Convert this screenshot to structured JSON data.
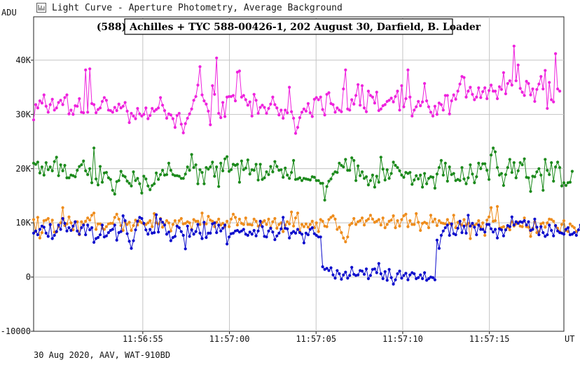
{
  "window": {
    "title": "Light Curve - Aperture Photometry, Average Background",
    "icon": "light-curve-icon"
  },
  "footer": {
    "text": "30 Aug 2020, AAV, WAT-910BD"
  },
  "chart_data": {
    "type": "line",
    "title": "(588) Achilles + TYC 588-00426-1, 202 August 30, Darfield, B. Loader",
    "ylabel": "ADU",
    "xlabel": "UT",
    "ylim": [
      -10000,
      48000
    ],
    "xlim": [
      "11:56:48.7",
      "11:57:19.3"
    ],
    "grid": true,
    "y_ticks": [
      {
        "value": -10000,
        "label": "-10000"
      },
      {
        "value": 0,
        "label": "0"
      },
      {
        "value": 10000,
        "label": "10K"
      },
      {
        "value": 20000,
        "label": "20K"
      },
      {
        "value": 30000,
        "label": "30K"
      },
      {
        "value": 40000,
        "label": "40K"
      }
    ],
    "x_ticks": [
      {
        "value": "11:56:55",
        "label": "11:56:55"
      },
      {
        "value": "11:57:00",
        "label": "11:57:00"
      },
      {
        "value": "11:57:05",
        "label": "11:57:05"
      },
      {
        "value": "11:57:10",
        "label": "11:57:10"
      },
      {
        "value": "11:57:15",
        "label": "11:57:15"
      }
    ],
    "x": {
      "start": "11:56:48.7",
      "step_seconds": 0.12,
      "count": 256
    },
    "series": [
      {
        "color": "#ee22dd",
        "values": [
          29000,
          31800,
          31200,
          32500,
          32100,
          33600,
          31500,
          30400,
          31800,
          32800,
          30800,
          31200,
          32200,
          32600,
          31800,
          33100,
          33600,
          30100,
          30800,
          30000,
          31600,
          31500,
          32900,
          30400,
          30300,
          38200,
          30400,
          38400,
          32000,
          31800,
          30300,
          30900,
          31200,
          32400,
          33100,
          32600,
          30800,
          30700,
          30400,
          31300,
          30700,
          31900,
          31200,
          31500,
          32200,
          30600,
          28500,
          30200,
          29700,
          29200,
          31100,
          30100,
          29700,
          30000,
          31200,
          29200,
          29800,
          31100,
          30600,
          30900,
          31200,
          33100,
          31700,
          30700,
          29300,
          30100,
          29900,
          29200,
          27600,
          29800,
          30200,
          28200,
          26600,
          28300,
          29300,
          30100,
          31000,
          32600,
          33300,
          35400,
          38800,
          33600,
          32500,
          31900,
          30600,
          28100,
          35300,
          33700,
          40400,
          30200,
          29400,
          32200,
          29600,
          33200,
          33300,
          33300,
          33500,
          32500,
          37800,
          38000,
          33200,
          33500,
          32700,
          31700,
          32300,
          29700,
          33700,
          32600,
          30200,
          31300,
          31700,
          31300,
          30200,
          31100,
          31900,
          33200,
          31800,
          31200,
          29900,
          30800,
          29300,
          30800,
          30300,
          35000,
          30500,
          29300,
          26500,
          27600,
          29400,
          30400,
          31000,
          30600,
          32000,
          30300,
          29600,
          32800,
          33100,
          32700,
          33200,
          30900,
          29900,
          33700,
          34000,
          32000,
          31800,
          30400,
          31200,
          30800,
          30500,
          34700,
          38200,
          31000,
          30800,
          32700,
          31900,
          33500,
          35500,
          31700,
          35300,
          31200,
          30500,
          34300,
          33500,
          33200,
          32100,
          34100,
          30700,
          31000,
          31600,
          31800,
          32400,
          32600,
          33000,
          32300,
          33300,
          34300,
          30800,
          35300,
          31400,
          32900,
          38200,
          33200,
          29700,
          30800,
          31400,
          32400,
          31600,
          32300,
          35700,
          32500,
          31400,
          30400,
          29700,
          31500,
          30000,
          32100,
          31800,
          30800,
          33500,
          33500,
          30100,
          32500,
          33600,
          32800,
          34300,
          35600,
          37000,
          36800,
          33200,
          34300,
          35000,
          33700,
          32700,
          33200,
          34900,
          33100,
          34200,
          34900,
          32900,
          34400,
          35400,
          34300,
          34300,
          32900,
          35100,
          34600,
          37700,
          33800,
          35700,
          36200,
          35400,
          42600,
          36200,
          39100,
          34800,
          34100,
          33500,
          36100,
          35700,
          33600,
          34700,
          32400,
          34600,
          35600,
          37000,
          34700,
          38100,
          31100,
          35900,
          32700,
          32300,
          41200,
          34700,
          34300
        ]
      },
      {
        "color": "#1c8a1c",
        "values": [
          21000,
          20800,
          21200,
          19200,
          20300,
          18800,
          21100,
          19800,
          20300,
          19600,
          21300,
          22100,
          18700,
          20700,
          19600,
          20600,
          18300,
          18300,
          18800,
          18700,
          18500,
          19700,
          20400,
          20700,
          21400,
          19600,
          18900,
          20000,
          17400,
          23800,
          18100,
          17000,
          20400,
          17500,
          19200,
          19300,
          18300,
          18000,
          16000,
          15300,
          17600,
          17800,
          19500,
          18700,
          18500,
          17700,
          17300,
          16800,
          19400,
          17800,
          18200,
          17200,
          15500,
          18600,
          18100,
          16800,
          16100,
          16900,
          17200,
          19200,
          18000,
          18900,
          19700,
          18800,
          18900,
          21000,
          19700,
          18900,
          18700,
          18700,
          18600,
          18200,
          18200,
          19000,
          20300,
          19700,
          22600,
          20200,
          20700,
          17200,
          19800,
          19300,
          17200,
          20200,
          19900,
          20300,
          21200,
          18600,
          20300,
          16700,
          21000,
          19600,
          21800,
          22200,
          19500,
          19800,
          20800,
          20600,
          20800,
          17500,
          21400,
          19800,
          20100,
          21600,
          19000,
          19800,
          19700,
          20800,
          17900,
          20800,
          18000,
          18300,
          19400,
          18900,
          20400,
          19400,
          21300,
          20400,
          19700,
          19800,
          18400,
          20100,
          18800,
          18200,
          19300,
          21500,
          18000,
          18100,
          18300,
          17800,
          18200,
          18100,
          18000,
          17900,
          18500,
          18400,
          17800,
          17800,
          17300,
          17300,
          14200,
          16700,
          17700,
          18100,
          19000,
          19400,
          19300,
          21000,
          20600,
          20300,
          21700,
          19700,
          19700,
          22000,
          21500,
          17800,
          20500,
          18700,
          19400,
          18200,
          18500,
          17000,
          17800,
          18800,
          16600,
          18600,
          17500,
          22100,
          19900,
          17900,
          19800,
          18200,
          19100,
          21200,
          20600,
          20200,
          19600,
          18800,
          18400,
          19300,
          19100,
          19300,
          17100,
          17900,
          18700,
          18100,
          18800,
          16600,
          19100,
          17200,
          18200,
          18500,
          18400,
          16400,
          19000,
          20200,
          21500,
          18800,
          21000,
          17700,
          20300,
          18900,
          19100,
          17800,
          18000,
          17800,
          20200,
          18100,
          17200,
          18300,
          20700,
          19000,
          17400,
          18500,
          21000,
          20000,
          20900,
          20900,
          19700,
          18000,
          22500,
          23800,
          23100,
          20200,
          18800,
          19100,
          16900,
          18900,
          20200,
          21700,
          19300,
          21100,
          18300,
          19600,
          21100,
          20700,
          21800,
          18400,
          18300,
          15800,
          18600,
          18500,
          19400,
          20000,
          18800,
          16000,
          21700,
          19700,
          18900,
          21100,
          17700,
          20300,
          21200,
          20200,
          16800,
          17400,
          16900,
          17400,
          17500,
          19500
        ]
      },
      {
        "color": "#ee8c1c",
        "values": [
          10600,
          8400,
          11000,
          7200,
          8200,
          10400,
          10500,
          10800,
          9600,
          10500,
          8300,
          8300,
          9300,
          10000,
          12800,
          9500,
          9800,
          11100,
          10000,
          8700,
          10200,
          10200,
          7800,
          10200,
          9700,
          10300,
          10900,
          10500,
          11400,
          11800,
          8800,
          9800,
          9800,
          9000,
          8800,
          9300,
          9800,
          9900,
          9900,
          11000,
          11600,
          10700,
          9500,
          8600,
          10200,
          9700,
          10100,
          8600,
          9500,
          10500,
          9600,
          10300,
          10000,
          9800,
          9700,
          10000,
          10400,
          9300,
          11700,
          10000,
          9800,
          10800,
          9200,
          9700,
          10400,
          10000,
          8500,
          9700,
          10400,
          9400,
          10400,
          10800,
          9800,
          9900,
          10200,
          10000,
          8800,
          10600,
          10300,
          10300,
          9700,
          11800,
          9800,
          9800,
          11200,
          10500,
          10300,
          9300,
          10100,
          10700,
          9600,
          9900,
          9300,
          10300,
          9300,
          10700,
          11600,
          11000,
          9600,
          10700,
          9900,
          9700,
          10900,
          9700,
          9700,
          9600,
          10700,
          10300,
          9400,
          9600,
          10100,
          10400,
          9700,
          10700,
          9100,
          10200,
          10800,
          9000,
          9700,
          10000,
          8400,
          9600,
          10200,
          9800,
          12000,
          9400,
          10900,
          11800,
          8400,
          9700,
          9300,
          9800,
          9200,
          9700,
          10300,
          9100,
          10000,
          8400,
          10600,
          10300,
          9400,
          9300,
          10600,
          11000,
          11300,
          10700,
          8800,
          9200,
          8200,
          7200,
          6500,
          7400,
          9600,
          9900,
          10800,
          9700,
          10200,
          10400,
          10900,
          9600,
          10400,
          10700,
          11400,
          10700,
          10100,
          10300,
          10600,
          9600,
          10900,
          9100,
          9700,
          10300,
          10500,
          11300,
          9100,
          10400,
          9400,
          10600,
          11300,
          11600,
          9300,
          10400,
          9700,
          9700,
          11700,
          10100,
          8600,
          9900,
          10100,
          9900,
          9100,
          11400,
          10200,
          10700,
          9500,
          10400,
          10000,
          9900,
          9800,
          10600,
          9900,
          9600,
          11400,
          9100,
          10100,
          9800,
          9600,
          10600,
          9600,
          9900,
          7100,
          9700,
          9500,
          9800,
          10400,
          9200,
          10000,
          7700,
          10500,
          11100,
          12800,
          10300,
          10400,
          13000,
          9000,
          9100,
          9300,
          8700,
          9200,
          8700,
          10200,
          9400,
          9800,
          10100,
          9400,
          9300,
          10900,
          9300,
          9200,
          7500,
          9000,
          10200,
          8200,
          8400,
          9800,
          10000,
          9200,
          10000,
          10700,
          10600,
          10300,
          9400,
          9000,
          8400,
          9700,
          10400,
          8600,
          8400,
          9800,
          9400,
          9100,
          8400
        ]
      },
      {
        "color": "#0c0ccc",
        "values": [
          8100,
          8500,
          7800,
          8800,
          9400,
          9200,
          8100,
          7500,
          9700,
          7100,
          7700,
          8400,
          9600,
          8800,
          10800,
          9900,
          8500,
          9100,
          8600,
          9400,
          10200,
          8500,
          7900,
          9100,
          9600,
          7800,
          9600,
          8700,
          9100,
          6400,
          7100,
          7300,
          7800,
          9600,
          7400,
          7600,
          8200,
          8600,
          8800,
          9600,
          6800,
          8200,
          8400,
          11300,
          10400,
          8000,
          6600,
          5300,
          6700,
          8700,
          10300,
          11000,
          10800,
          9900,
          8700,
          7900,
          8800,
          8100,
          8200,
          11500,
          8300,
          10700,
          10100,
          9600,
          7900,
          8300,
          6700,
          7300,
          7500,
          9400,
          9100,
          8400,
          7700,
          5200,
          9400,
          7500,
          8700,
          7900,
          8400,
          9700,
          8100,
          7100,
          10100,
          7300,
          8100,
          8100,
          9800,
          10000,
          8200,
          9600,
          8500,
          9000,
          9600,
          6100,
          7400,
          8000,
          8100,
          8500,
          8600,
          8300,
          8500,
          8800,
          7900,
          7700,
          8300,
          7900,
          8600,
          7600,
          8500,
          10300,
          9300,
          7500,
          7400,
          8500,
          9000,
          8300,
          6900,
          7600,
          8100,
          8900,
          11000,
          9000,
          8900,
          7200,
          8100,
          8400,
          8100,
          8800,
          8200,
          7900,
          6300,
          8100,
          7800,
          8800,
          9100,
          8000,
          7700,
          7400,
          7400,
          1900,
          1400,
          1600,
          1200,
          1700,
          400,
          -200,
          1200,
          600,
          -400,
          400,
          900,
          -200,
          300,
          1800,
          500,
          300,
          400,
          1200,
          1100,
          500,
          1500,
          -300,
          300,
          1400,
          1500,
          800,
          2500,
          600,
          -300,
          1000,
          -600,
          1400,
          -100,
          -1300,
          -500,
          600,
          1100,
          -200,
          300,
          700,
          -500,
          400,
          800,
          600,
          -300,
          -100,
          400,
          -300,
          800,
          -600,
          -300,
          0,
          -100,
          -500,
          6800,
          5300,
          7700,
          8500,
          9100,
          9600,
          7700,
          9800,
          8000,
          7800,
          9000,
          10300,
          8200,
          9400,
          8100,
          11400,
          9400,
          9900,
          9200,
          7800,
          9600,
          8800,
          8800,
          8300,
          9700,
          9700,
          8900,
          8300,
          8800,
          7200,
          8900,
          8700,
          7600,
          8700,
          9500,
          9300,
          11100,
          9600,
          10200,
          9900,
          10200,
          10100,
          10400,
          9600,
          10200,
          8600,
          8800,
          10700,
          9200,
          7800,
          9300,
          8200,
          7500,
          7800,
          9600,
          8600,
          7600,
          9500,
          8500,
          8200,
          8100,
          7900,
          8800,
          9100,
          7800,
          7900,
          8200,
          7700,
          8700,
          9600,
          9900,
          7500,
          7900,
          8700,
          8800,
          8400,
          8300,
          9000
        ]
      }
    ]
  }
}
